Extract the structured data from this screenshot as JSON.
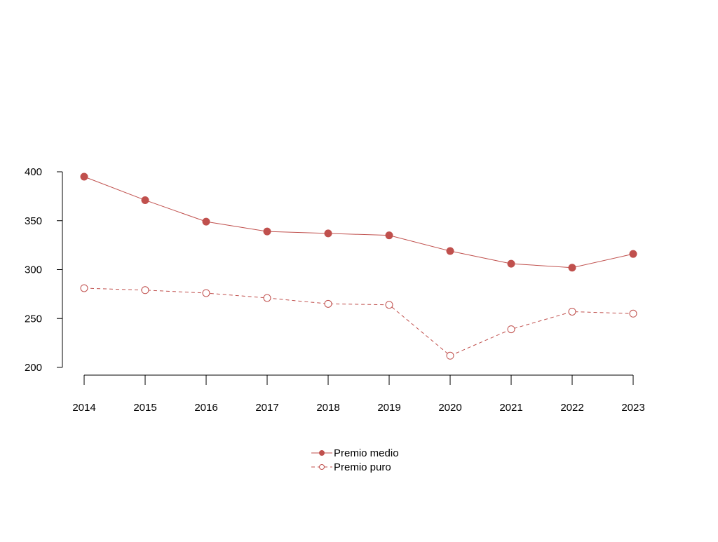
{
  "colors": {
    "series": "#c0504d",
    "axis": "#000000",
    "background": "#ffffff"
  },
  "chart_data": {
    "type": "line",
    "title": "",
    "xlabel": "",
    "ylabel": "",
    "x": [
      "2014",
      "2015",
      "2016",
      "2017",
      "2018",
      "2019",
      "2020",
      "2021",
      "2022",
      "2023"
    ],
    "ylim": [
      200,
      400
    ],
    "yticks": [
      "200",
      "250",
      "300",
      "350",
      "400"
    ],
    "grid": false,
    "legend_position": "bottom-center",
    "series": [
      {
        "name": "Premio medio",
        "marker": "filled-circle",
        "line": "solid",
        "values": [
          395,
          371,
          349,
          339,
          337,
          335,
          319,
          306,
          302,
          316
        ]
      },
      {
        "name": "Premio puro",
        "marker": "open-circle",
        "line": "dashed",
        "values": [
          281,
          279,
          276,
          271,
          265,
          264,
          212,
          239,
          257,
          255
        ]
      }
    ]
  }
}
